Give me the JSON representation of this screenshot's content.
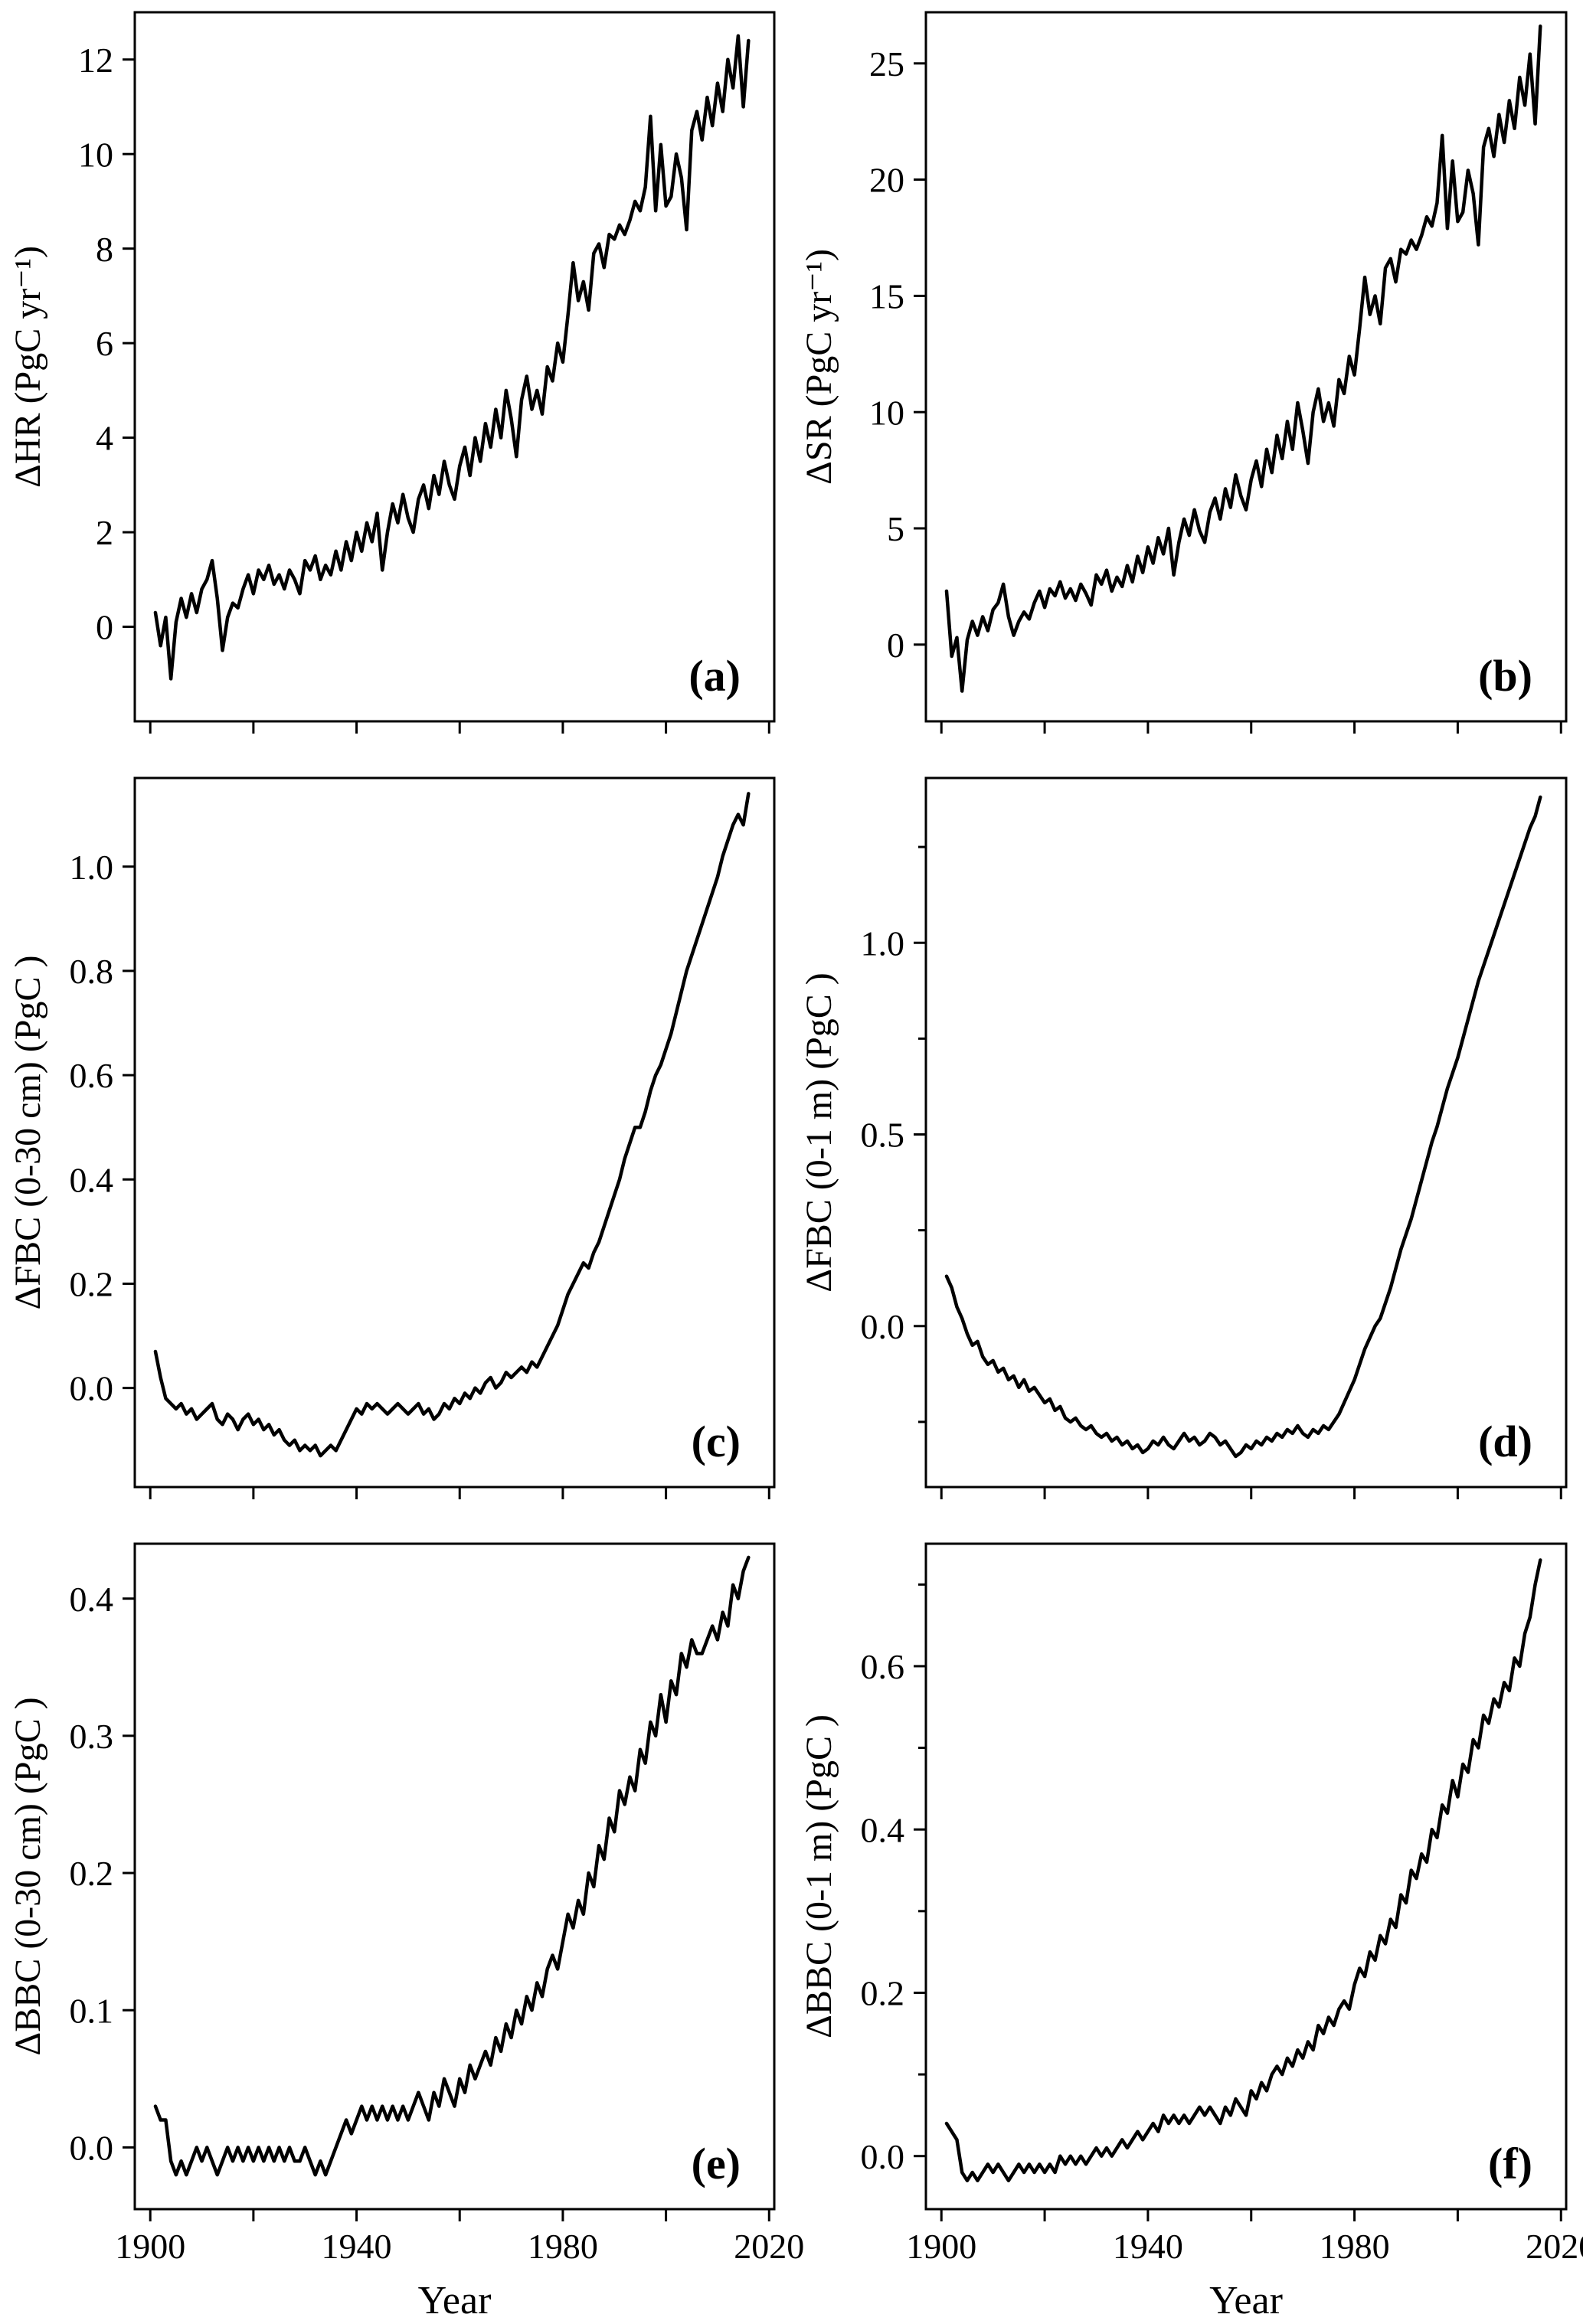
{
  "figure": {
    "xlabel": "Year",
    "colors": {
      "line": "#000000",
      "axis": "#000000",
      "background": "#ffffff"
    },
    "x_axis": {
      "lim": [
        1897,
        2021
      ],
      "ticks": [
        1900,
        1920,
        1940,
        1960,
        1980,
        2000,
        2020
      ],
      "labeled_ticks": [
        1900,
        1940,
        1980,
        2020
      ]
    }
  },
  "chart_data": [
    {
      "type": "line",
      "panel": "(a)",
      "ylabel": "ΔHR (PgC yr⁻¹)",
      "xlabel": "Year",
      "x_start": 1901,
      "x_end": 2016,
      "x_step": 1,
      "ylim": [
        -2.0,
        13.0
      ],
      "yticks": [
        0,
        2,
        4,
        6,
        8,
        10,
        12
      ],
      "ytick_decimals": 0,
      "values": [
        0.3,
        -0.4,
        0.2,
        -1.1,
        0.1,
        0.6,
        0.2,
        0.7,
        0.3,
        0.8,
        1.0,
        1.4,
        0.6,
        -0.5,
        0.2,
        0.5,
        0.4,
        0.8,
        1.1,
        0.7,
        1.2,
        1.0,
        1.3,
        0.9,
        1.1,
        0.8,
        1.2,
        1.0,
        0.7,
        1.4,
        1.2,
        1.5,
        1.0,
        1.3,
        1.1,
        1.6,
        1.2,
        1.8,
        1.4,
        2.0,
        1.6,
        2.2,
        1.8,
        2.4,
        1.2,
        2.0,
        2.6,
        2.2,
        2.8,
        2.3,
        2.0,
        2.7,
        3.0,
        2.5,
        3.2,
        2.8,
        3.5,
        3.0,
        2.7,
        3.4,
        3.8,
        3.2,
        4.0,
        3.5,
        4.3,
        3.8,
        4.6,
        4.0,
        5.0,
        4.4,
        3.6,
        4.8,
        5.3,
        4.6,
        5.0,
        4.5,
        5.5,
        5.2,
        6.0,
        5.6,
        6.6,
        7.7,
        6.9,
        7.3,
        6.7,
        7.9,
        8.1,
        7.6,
        8.3,
        8.2,
        8.5,
        8.3,
        8.6,
        9.0,
        8.8,
        9.3,
        10.8,
        8.8,
        10.2,
        8.9,
        9.1,
        10.0,
        9.5,
        8.4,
        10.5,
        10.9,
        10.3,
        11.2,
        10.6,
        11.5,
        10.9,
        12.0,
        11.4,
        12.5,
        11.0,
        12.4
      ]
    },
    {
      "type": "line",
      "panel": "(b)",
      "ylabel": "ΔSR (PgC yr⁻¹)",
      "xlabel": "Year",
      "x_start": 1901,
      "x_end": 2016,
      "x_step": 1,
      "ylim": [
        -3.3,
        27.2
      ],
      "yticks": [
        0,
        5,
        10,
        15,
        20,
        25
      ],
      "ytick_decimals": 0,
      "values": [
        2.3,
        -0.5,
        0.3,
        -2.0,
        0.2,
        1.0,
        0.4,
        1.2,
        0.6,
        1.5,
        1.8,
        2.6,
        1.2,
        0.4,
        1.0,
        1.4,
        1.1,
        1.8,
        2.3,
        1.6,
        2.4,
        2.1,
        2.7,
        2.0,
        2.4,
        1.9,
        2.6,
        2.2,
        1.7,
        3.0,
        2.6,
        3.2,
        2.3,
        2.9,
        2.5,
        3.4,
        2.7,
        3.8,
        3.1,
        4.2,
        3.5,
        4.6,
        3.9,
        5.0,
        3.0,
        4.4,
        5.4,
        4.7,
        5.8,
        4.9,
        4.4,
        5.7,
        6.3,
        5.4,
        6.7,
        5.9,
        7.3,
        6.4,
        5.8,
        7.1,
        7.9,
        6.8,
        8.4,
        7.4,
        9.0,
        8.0,
        9.6,
        8.4,
        10.4,
        9.2,
        7.8,
        10.0,
        11.0,
        9.6,
        10.4,
        9.4,
        11.4,
        10.8,
        12.4,
        11.6,
        13.6,
        15.8,
        14.2,
        15.0,
        13.8,
        16.2,
        16.6,
        15.6,
        17.0,
        16.8,
        17.4,
        17.0,
        17.6,
        18.4,
        18.0,
        19.0,
        21.9,
        17.9,
        20.8,
        18.2,
        18.6,
        20.4,
        19.4,
        17.2,
        21.4,
        22.2,
        21.0,
        22.8,
        21.6,
        23.4,
        22.2,
        24.4,
        23.2,
        25.4,
        22.4,
        26.6
      ]
    },
    {
      "type": "line",
      "panel": "(c)",
      "ylabel": "ΔFBC (0-30 cm) (PgC )",
      "xlabel": "Year",
      "x_start": 1901,
      "x_end": 2016,
      "x_step": 1,
      "ylim": [
        -0.19,
        1.17
      ],
      "yticks": [
        0.0,
        0.2,
        0.4,
        0.6,
        0.8,
        1.0
      ],
      "ytick_decimals": 1,
      "values": [
        0.07,
        0.02,
        -0.02,
        -0.03,
        -0.04,
        -0.03,
        -0.05,
        -0.04,
        -0.06,
        -0.05,
        -0.04,
        -0.03,
        -0.06,
        -0.07,
        -0.05,
        -0.06,
        -0.08,
        -0.06,
        -0.05,
        -0.07,
        -0.06,
        -0.08,
        -0.07,
        -0.09,
        -0.08,
        -0.1,
        -0.11,
        -0.1,
        -0.12,
        -0.11,
        -0.12,
        -0.11,
        -0.13,
        -0.12,
        -0.11,
        -0.12,
        -0.1,
        -0.08,
        -0.06,
        -0.04,
        -0.05,
        -0.03,
        -0.04,
        -0.03,
        -0.04,
        -0.05,
        -0.04,
        -0.03,
        -0.04,
        -0.05,
        -0.04,
        -0.03,
        -0.05,
        -0.04,
        -0.06,
        -0.05,
        -0.03,
        -0.04,
        -0.02,
        -0.03,
        -0.01,
        -0.02,
        0.0,
        -0.01,
        0.01,
        0.02,
        0.0,
        0.01,
        0.03,
        0.02,
        0.03,
        0.04,
        0.03,
        0.05,
        0.04,
        0.06,
        0.08,
        0.1,
        0.12,
        0.15,
        0.18,
        0.2,
        0.22,
        0.24,
        0.23,
        0.26,
        0.28,
        0.31,
        0.34,
        0.37,
        0.4,
        0.44,
        0.47,
        0.5,
        0.5,
        0.53,
        0.57,
        0.6,
        0.62,
        0.65,
        0.68,
        0.72,
        0.76,
        0.8,
        0.83,
        0.86,
        0.89,
        0.92,
        0.95,
        0.98,
        1.02,
        1.05,
        1.08,
        1.1,
        1.08,
        1.14
      ]
    },
    {
      "type": "line",
      "panel": "(d)",
      "ylabel": "ΔFBC (0-1 m) (PgC )",
      "xlabel": "Year",
      "x_start": 1901,
      "x_end": 2016,
      "x_step": 1,
      "ylim": [
        -0.42,
        1.43
      ],
      "yticks": [
        0.0,
        0.5,
        1.0
      ],
      "yticks_minor": [
        -0.25,
        0.25,
        0.75,
        1.25
      ],
      "ytick_decimals": 1,
      "values": [
        0.13,
        0.1,
        0.05,
        0.02,
        -0.02,
        -0.05,
        -0.04,
        -0.08,
        -0.1,
        -0.09,
        -0.12,
        -0.11,
        -0.14,
        -0.13,
        -0.16,
        -0.14,
        -0.17,
        -0.16,
        -0.18,
        -0.2,
        -0.19,
        -0.22,
        -0.21,
        -0.24,
        -0.25,
        -0.24,
        -0.26,
        -0.27,
        -0.26,
        -0.28,
        -0.29,
        -0.28,
        -0.3,
        -0.29,
        -0.31,
        -0.3,
        -0.32,
        -0.31,
        -0.33,
        -0.32,
        -0.3,
        -0.31,
        -0.29,
        -0.31,
        -0.32,
        -0.3,
        -0.28,
        -0.3,
        -0.29,
        -0.31,
        -0.3,
        -0.28,
        -0.29,
        -0.31,
        -0.3,
        -0.32,
        -0.34,
        -0.33,
        -0.31,
        -0.32,
        -0.3,
        -0.31,
        -0.29,
        -0.3,
        -0.28,
        -0.29,
        -0.27,
        -0.28,
        -0.26,
        -0.28,
        -0.29,
        -0.27,
        -0.28,
        -0.26,
        -0.27,
        -0.25,
        -0.23,
        -0.2,
        -0.17,
        -0.14,
        -0.1,
        -0.06,
        -0.03,
        0.0,
        0.02,
        0.06,
        0.1,
        0.15,
        0.2,
        0.24,
        0.28,
        0.33,
        0.38,
        0.43,
        0.48,
        0.52,
        0.57,
        0.62,
        0.66,
        0.7,
        0.75,
        0.8,
        0.85,
        0.9,
        0.94,
        0.98,
        1.02,
        1.06,
        1.1,
        1.14,
        1.18,
        1.22,
        1.26,
        1.3,
        1.33,
        1.38
      ]
    },
    {
      "type": "line",
      "panel": "(e)",
      "ylabel": "ΔBBC (0-30 cm) (PgC )",
      "xlabel": "Year",
      "x_start": 1901,
      "x_end": 2016,
      "x_step": 1,
      "ylim": [
        -0.045,
        0.44
      ],
      "yticks": [
        0.0,
        0.1,
        0.2,
        0.3,
        0.4
      ],
      "ytick_decimals": 1,
      "values": [
        0.03,
        0.02,
        0.02,
        -0.01,
        -0.02,
        -0.01,
        -0.02,
        -0.01,
        0.0,
        -0.01,
        0.0,
        -0.01,
        -0.02,
        -0.01,
        0.0,
        -0.01,
        0.0,
        -0.01,
        0.0,
        -0.01,
        0.0,
        -0.01,
        0.0,
        -0.01,
        0.0,
        -0.01,
        0.0,
        -0.01,
        -0.01,
        0.0,
        -0.01,
        -0.02,
        -0.01,
        -0.02,
        -0.01,
        0.0,
        0.01,
        0.02,
        0.01,
        0.02,
        0.03,
        0.02,
        0.03,
        0.02,
        0.03,
        0.02,
        0.03,
        0.02,
        0.03,
        0.02,
        0.03,
        0.04,
        0.03,
        0.02,
        0.04,
        0.03,
        0.05,
        0.04,
        0.03,
        0.05,
        0.04,
        0.06,
        0.05,
        0.06,
        0.07,
        0.06,
        0.08,
        0.07,
        0.09,
        0.08,
        0.1,
        0.09,
        0.11,
        0.1,
        0.12,
        0.11,
        0.13,
        0.14,
        0.13,
        0.15,
        0.17,
        0.16,
        0.18,
        0.17,
        0.2,
        0.19,
        0.22,
        0.21,
        0.24,
        0.23,
        0.26,
        0.25,
        0.27,
        0.26,
        0.29,
        0.28,
        0.31,
        0.3,
        0.33,
        0.31,
        0.34,
        0.33,
        0.36,
        0.35,
        0.37,
        0.36,
        0.36,
        0.37,
        0.38,
        0.37,
        0.39,
        0.38,
        0.41,
        0.4,
        0.42,
        0.43
      ]
    },
    {
      "type": "line",
      "panel": "(f)",
      "ylabel": "ΔBBC (0-1 m) (PgC )",
      "xlabel": "Year",
      "x_start": 1901,
      "x_end": 2016,
      "x_step": 1,
      "ylim": [
        -0.065,
        0.75
      ],
      "yticks": [
        0.0,
        0.2,
        0.4,
        0.6
      ],
      "yticks_minor": [
        0.1,
        0.3,
        0.5,
        0.7
      ],
      "ytick_decimals": 1,
      "values": [
        0.04,
        0.03,
        0.02,
        -0.02,
        -0.03,
        -0.02,
        -0.03,
        -0.02,
        -0.01,
        -0.02,
        -0.01,
        -0.02,
        -0.03,
        -0.02,
        -0.01,
        -0.02,
        -0.01,
        -0.02,
        -0.01,
        -0.02,
        -0.01,
        -0.02,
        0.0,
        -0.01,
        0.0,
        -0.01,
        0.0,
        -0.01,
        0.0,
        0.01,
        0.0,
        0.01,
        0.0,
        0.01,
        0.02,
        0.01,
        0.02,
        0.03,
        0.02,
        0.03,
        0.04,
        0.03,
        0.05,
        0.04,
        0.05,
        0.04,
        0.05,
        0.04,
        0.05,
        0.06,
        0.05,
        0.06,
        0.05,
        0.04,
        0.06,
        0.05,
        0.07,
        0.06,
        0.05,
        0.08,
        0.07,
        0.09,
        0.08,
        0.1,
        0.11,
        0.1,
        0.12,
        0.11,
        0.13,
        0.12,
        0.14,
        0.13,
        0.16,
        0.15,
        0.17,
        0.16,
        0.18,
        0.19,
        0.18,
        0.21,
        0.23,
        0.22,
        0.25,
        0.24,
        0.27,
        0.26,
        0.29,
        0.28,
        0.32,
        0.31,
        0.35,
        0.34,
        0.37,
        0.36,
        0.4,
        0.39,
        0.43,
        0.42,
        0.46,
        0.44,
        0.48,
        0.47,
        0.51,
        0.5,
        0.54,
        0.53,
        0.56,
        0.55,
        0.58,
        0.57,
        0.61,
        0.6,
        0.64,
        0.66,
        0.7,
        0.73
      ]
    }
  ]
}
